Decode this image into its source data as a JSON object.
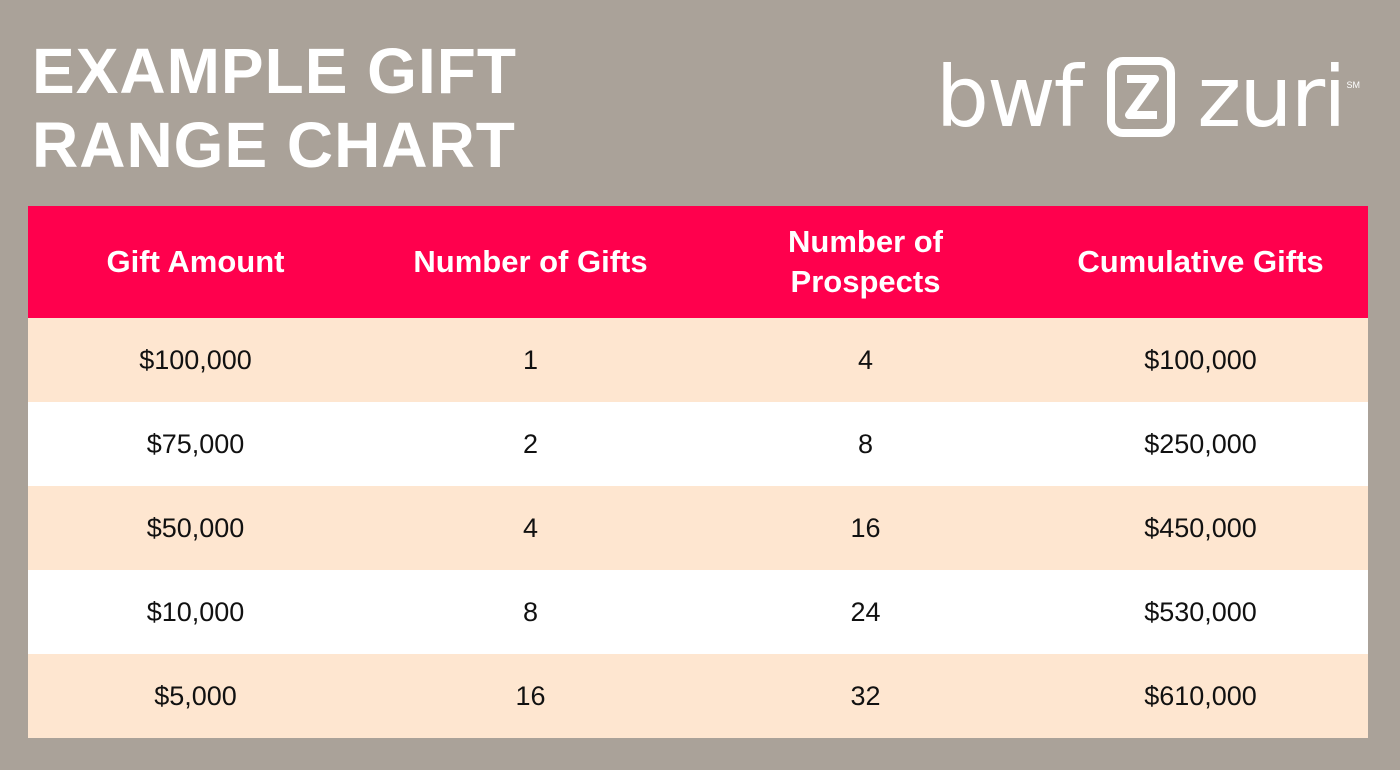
{
  "title": {
    "line1": "EXAMPLE GIFT",
    "line2": "RANGE CHART"
  },
  "logo": {
    "left_word": "bwf",
    "right_word": "zuri",
    "mark": "SM",
    "icon": "bz-monogram-icon"
  },
  "colors": {
    "background": "#aaa299",
    "header": "#ff004d",
    "row_alt": "#fee6d0",
    "row_plain": "#ffffff"
  },
  "table": {
    "headers": [
      "Gift Amount",
      "Number of Gifts",
      "Number of Prospects",
      "Cumulative Gifts"
    ],
    "rows": [
      [
        "$100,000",
        "1",
        "4",
        "$100,000"
      ],
      [
        "$75,000",
        "2",
        "8",
        "$250,000"
      ],
      [
        "$50,000",
        "4",
        "16",
        "$450,000"
      ],
      [
        "$10,000",
        "8",
        "24",
        "$530,000"
      ],
      [
        "$5,000",
        "16",
        "32",
        "$610,000"
      ]
    ]
  },
  "chart_data": {
    "type": "table",
    "title": "EXAMPLE GIFT RANGE CHART",
    "columns": [
      "Gift Amount",
      "Number of Gifts",
      "Number of Prospects",
      "Cumulative Gifts"
    ],
    "rows": [
      [
        100000,
        1,
        4,
        100000
      ],
      [
        75000,
        2,
        8,
        250000
      ],
      [
        50000,
        4,
        16,
        450000
      ],
      [
        10000,
        8,
        24,
        530000
      ],
      [
        5000,
        16,
        32,
        610000
      ]
    ]
  }
}
